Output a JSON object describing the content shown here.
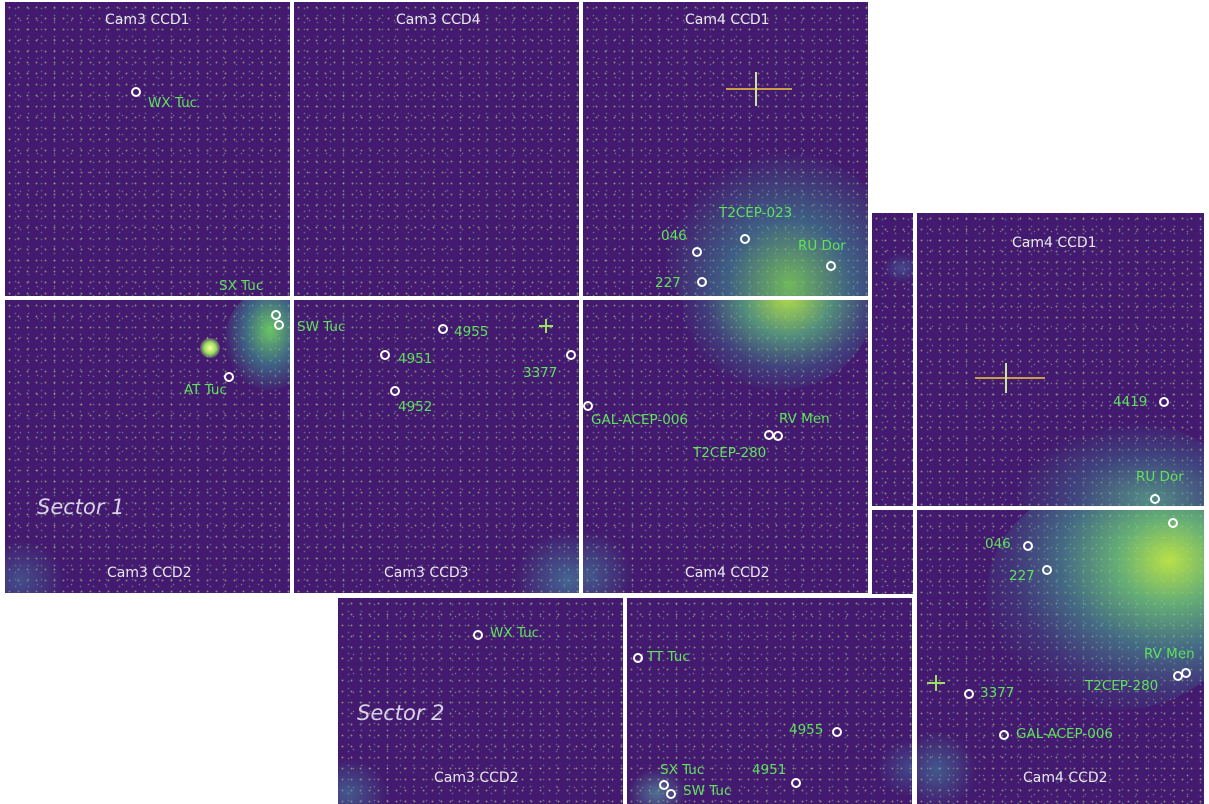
{
  "sector1": {
    "label": "Sector 1",
    "ccds": {
      "cam3_ccd1": "Cam3 CCD1",
      "cam3_ccd4": "Cam3 CCD4",
      "cam4_ccd1": "Cam4 CCD1",
      "cam3_ccd2": "Cam3 CCD2",
      "cam3_ccd3": "Cam3 CCD3",
      "cam4_ccd2": "Cam4 CCD2"
    },
    "stars": {
      "wx_tuc": "WX Tuc",
      "sx_tuc": "SX Tuc",
      "at_tuc": "AT Tuc",
      "sw_tuc": "SW Tuc",
      "s4955": "4955",
      "s4951": "4951",
      "s4952": "4952",
      "s3377": "3377",
      "t2cep023": "T2CEP-023",
      "s046": "046",
      "s227": "227",
      "ru_dor": "RU Dor",
      "gal_acep_006": "GAL-ACEP-006",
      "rv_men": "RV Men",
      "t2cep280": "T2CEP-280"
    }
  },
  "sector2": {
    "label": "Sector 2",
    "ccds": {
      "cam4_ccd1": "Cam4 CCD1",
      "cam3_ccd2": "Cam3 CCD2",
      "cam4_ccd2": "Cam4 CCD2"
    },
    "stars": {
      "s4419": "4419",
      "ru_dor": "RU Dor",
      "s046": "046",
      "s227": "227",
      "rv_men": "RV Men",
      "t2cep280": "T2CEP-280",
      "s3377": "3377",
      "gal_acep_006": "GAL-ACEP-006",
      "wx_tuc": "WX Tuc",
      "tt_tuc": "TT Tuc",
      "s4955": "4955",
      "sx_tuc": "SX Tuc",
      "s4951": "4951",
      "sw_tuc": "SW Tuc"
    }
  },
  "colors": {
    "sky_background": "#431a6f",
    "cluster_glow": "#3fc28a",
    "label_green": "#5fe35a",
    "ccd_label": "#e8e8ef",
    "divider": "#ffffff"
  }
}
